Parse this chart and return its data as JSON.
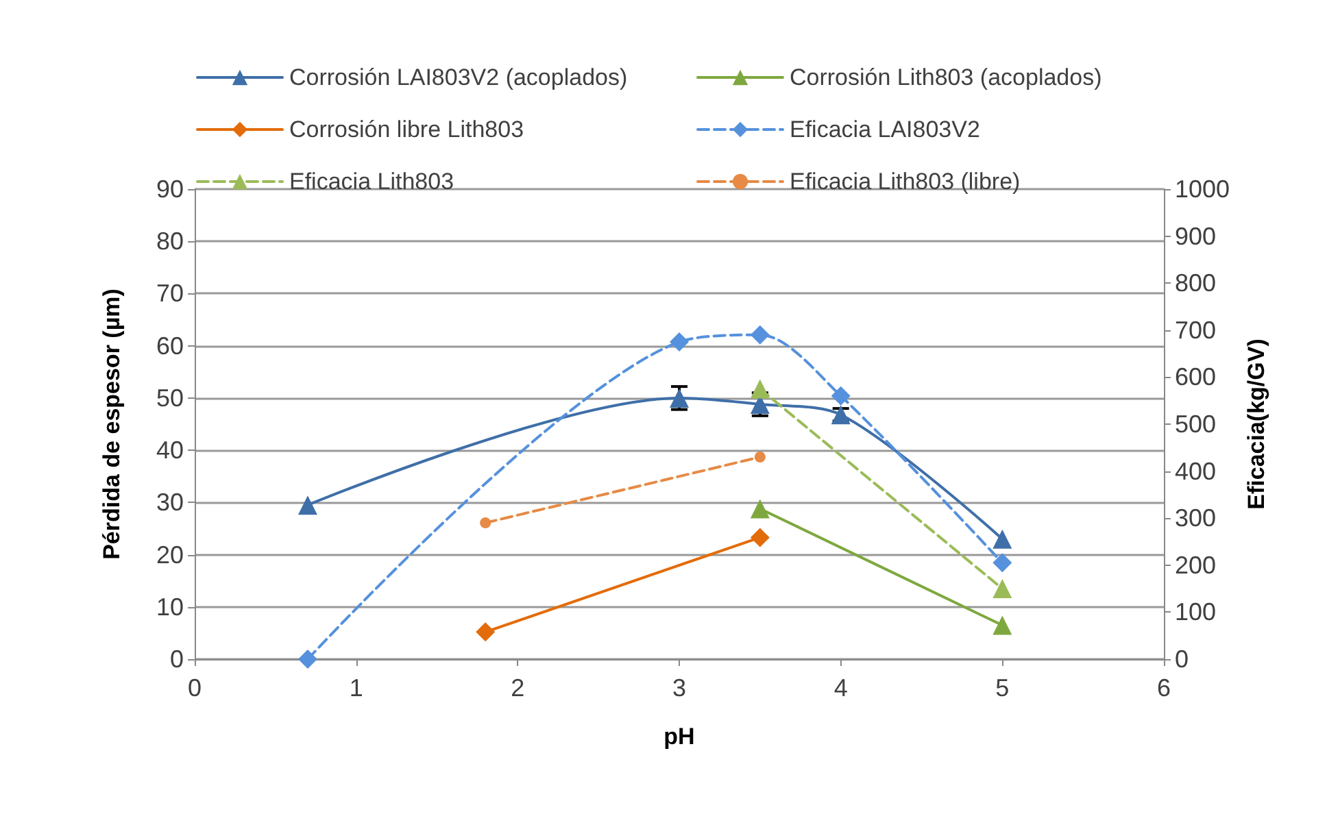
{
  "chart_data": {
    "type": "line",
    "xlabel": "pH",
    "ylabel": "Pérdida de espesor (µm)",
    "y2label": "Eficacia(kg/GV)",
    "xlim": [
      0,
      6
    ],
    "xticks": [
      0,
      1,
      2,
      3,
      4,
      5,
      6
    ],
    "ylim": [
      0,
      90
    ],
    "yticks": [
      0,
      10,
      20,
      30,
      40,
      50,
      60,
      70,
      80,
      90
    ],
    "y2lim": [
      0,
      1000
    ],
    "y2ticks": [
      0,
      100,
      200,
      300,
      400,
      500,
      600,
      700,
      800,
      900,
      1000
    ],
    "grid": "y",
    "legend": "top",
    "series": [
      {
        "name": "Corrosión LAI803V2 (acoplados)",
        "color": "#3f6fa8",
        "marker": "triangle",
        "line_style": "solid",
        "x": [
          0.7,
          3,
          3.5,
          4,
          5
        ],
        "values": [
          29.5,
          50,
          48.8,
          46.8,
          23
        ],
        "errors": [
          null,
          2.2,
          2.2,
          1.2,
          null
        ]
      },
      {
        "name": "Corrosión Lith803 (acoplados)",
        "color": "#7ea83f",
        "marker": "triangle",
        "line_style": "solid",
        "x": [
          3.5,
          5
        ],
        "values": [
          28.8,
          6.5
        ]
      },
      {
        "name": "Corrosión libre Lith803",
        "color": "#e36c0a",
        "marker": "diamond",
        "line_style": "solid",
        "x": [
          1.8,
          3.5
        ],
        "values": [
          5.2,
          23.3
        ]
      },
      {
        "name": "Eficacia LAI803V2",
        "color": "#5591dc",
        "marker": "diamond",
        "line_style": "dashed",
        "axis": "y2",
        "x": [
          0.7,
          3,
          3.5,
          4,
          5
        ],
        "values": [
          0,
          675,
          690,
          560,
          205
        ]
      },
      {
        "name": "Eficacia Lith803",
        "color": "#9bbb59",
        "marker": "triangle",
        "line_style": "dashed",
        "axis": "y2",
        "x": [
          3.5,
          5
        ],
        "values": [
          575,
          150
        ]
      },
      {
        "name": "Eficacia Lith803 (libre)",
        "color": "#e68a45",
        "marker": "circle",
        "line_style": "dashed",
        "axis": "y2",
        "x": [
          1.8,
          3.5
        ],
        "values": [
          290,
          430
        ]
      }
    ]
  }
}
